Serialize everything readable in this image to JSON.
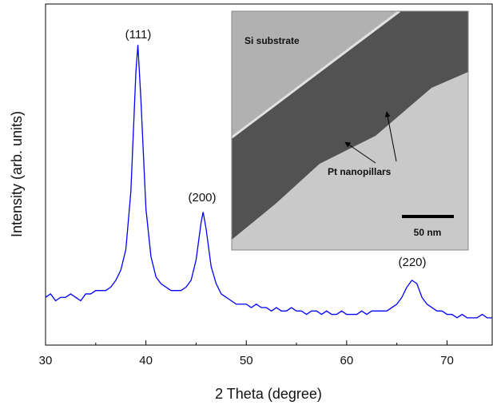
{
  "chart_data": {
    "type": "line",
    "xlabel": "2 Theta (degree)",
    "ylabel": "Intensity (arb. units)",
    "xlim": [
      30,
      74.5
    ],
    "ylim": [
      0,
      100
    ],
    "xticks": [
      30,
      40,
      50,
      60,
      70
    ],
    "xminorticks": [
      35,
      45,
      55,
      65
    ],
    "annotations": [
      "(111)",
      "(200)",
      "(220)"
    ],
    "series": [
      {
        "color": "#0000ff",
        "x": [
          30,
          30.5,
          31,
          31.5,
          32,
          32.5,
          33,
          33.5,
          34,
          34.5,
          35,
          35.5,
          36,
          36.5,
          37,
          37.5,
          38,
          38.5,
          39,
          39.2,
          39.5,
          40,
          40.5,
          41,
          41.5,
          42,
          42.5,
          43,
          43.5,
          44,
          44.5,
          45,
          45.5,
          45.7,
          46,
          46.5,
          47,
          47.5,
          48,
          48.5,
          49,
          49.5,
          50,
          50.5,
          51,
          51.5,
          52,
          52.5,
          53,
          53.5,
          54,
          54.5,
          55,
          55.5,
          56,
          56.5,
          57,
          57.5,
          58,
          58.5,
          59,
          59.5,
          60,
          60.5,
          61,
          61.5,
          62,
          62.5,
          63,
          63.5,
          64,
          64.5,
          65,
          65.5,
          66,
          66.5,
          67,
          67.5,
          68,
          68.5,
          69,
          69.5,
          70,
          70.5,
          71,
          71.5,
          72,
          72.5,
          73,
          73.5,
          74,
          74.5
        ],
        "values": [
          14,
          15,
          13,
          14,
          14,
          15,
          14,
          13,
          15,
          15,
          16,
          16,
          16,
          17,
          19,
          22,
          28,
          45,
          80,
          88,
          72,
          40,
          26,
          20,
          18,
          17,
          16,
          16,
          16,
          17,
          19,
          25,
          36,
          39,
          34,
          23,
          18,
          15,
          14,
          13,
          12,
          12,
          12,
          11,
          12,
          11,
          11,
          10,
          11,
          10,
          10,
          11,
          10,
          10,
          9,
          10,
          10,
          9,
          10,
          9,
          9,
          10,
          9,
          9,
          9,
          10,
          9,
          10,
          10,
          10,
          10,
          11,
          12,
          14,
          17,
          19,
          18,
          14,
          12,
          11,
          10,
          10,
          9,
          9,
          8,
          9,
          8,
          8,
          8,
          9,
          8,
          8
        ]
      }
    ]
  },
  "inset": {
    "substrate_label": "Si substrate",
    "pillar_label": "Pt nanopillars",
    "scale_label": "50 nm"
  }
}
